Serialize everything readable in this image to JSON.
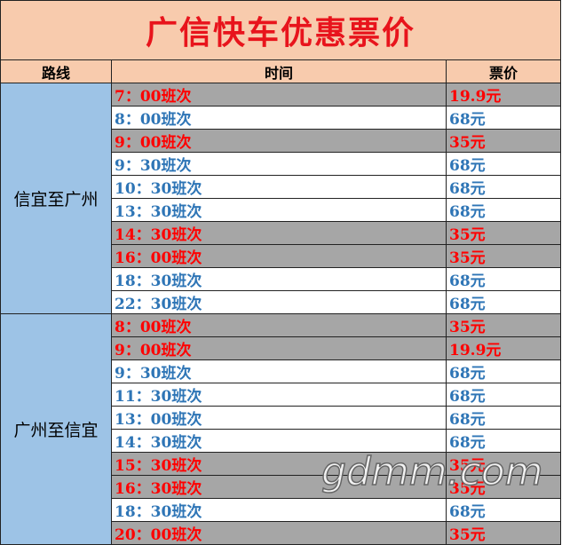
{
  "title": "广信快车优惠票价",
  "header": [
    "路线",
    "时间",
    "票价"
  ],
  "groups": [
    {
      "route": "信宜至广州",
      "rows": [
        {
          "time": "7：00班次",
          "price": "19.9元",
          "color": "#ff0000"
        },
        {
          "time": "8：00班次",
          "price": "68元",
          "color": "#2e75b6"
        },
        {
          "time": "9：00班次",
          "price": "35元",
          "color": "#ff0000"
        },
        {
          "time": "9：30班次",
          "price": "68元",
          "color": "#2e75b6"
        },
        {
          "time": "10：30班次",
          "price": "68元",
          "color": "#2e75b6"
        },
        {
          "time": "13：30班次",
          "price": "68元",
          "color": "#2e75b6"
        },
        {
          "time": "14：30班次",
          "price": "35元",
          "color": "#ff0000"
        },
        {
          "time": "16：00班次",
          "price": "35元",
          "color": "#ff0000"
        },
        {
          "time": "18：30班次",
          "price": "68元",
          "color": "#2e75b6"
        },
        {
          "time": "22：30班次",
          "price": "68元",
          "color": "#2e75b6"
        }
      ]
    },
    {
      "route": "广州至信宜",
      "rows": [
        {
          "time": "8：00班次",
          "price": "35元",
          "color": "#ff0000"
        },
        {
          "time": "9：00班次",
          "price": "19.9元",
          "color": "#ff0000"
        },
        {
          "time": "9：30班次",
          "price": "68元",
          "color": "#2e75b6"
        },
        {
          "time": "11：30班次",
          "price": "68元",
          "color": "#2e75b6"
        },
        {
          "time": "13：00班次",
          "price": "68元",
          "color": "#2e75b6"
        },
        {
          "time": "14：30班次",
          "price": "68元",
          "color": "#2e75b6"
        },
        {
          "time": "15：30班次",
          "price": "35元",
          "color": "#ff0000"
        },
        {
          "time": "16：30班次",
          "price": "35元",
          "color": "#ff0000"
        },
        {
          "time": "18：30班次",
          "price": "68元",
          "color": "#2e75b6"
        },
        {
          "time": "20：00班次",
          "price": "35元",
          "color": "#ff0000"
        }
      ]
    }
  ],
  "watermark": "gdmm.com"
}
